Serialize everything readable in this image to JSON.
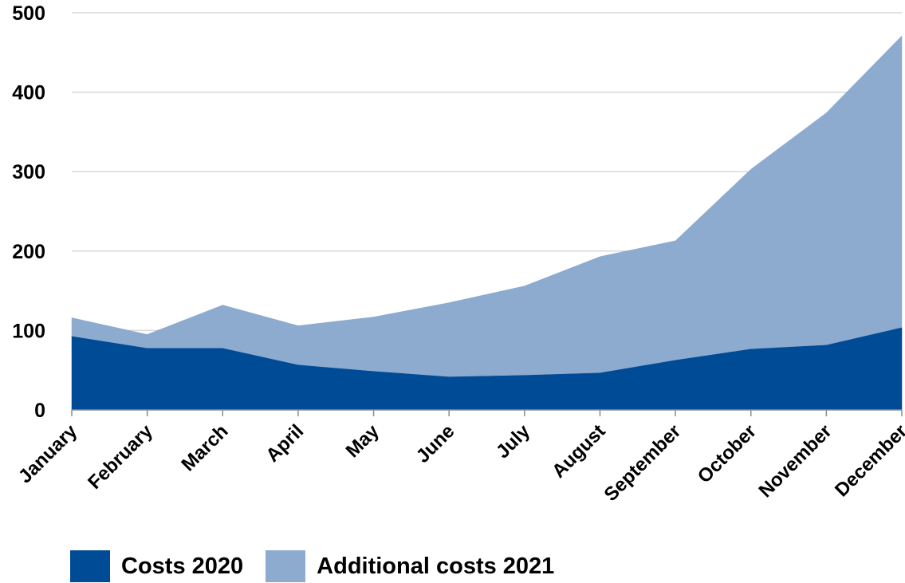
{
  "chart_data": {
    "type": "area",
    "stacked": true,
    "categories": [
      "January",
      "February",
      "March",
      "April",
      "May",
      "June",
      "July",
      "August",
      "September",
      "October",
      "November",
      "December"
    ],
    "series": [
      {
        "name": "Costs 2020",
        "color": "#004B96",
        "values": [
          93,
          78,
          78,
          57,
          49,
          42,
          44,
          47,
          63,
          77,
          82,
          104
        ]
      },
      {
        "name": "Additional costs 2021",
        "color": "#8DAACF",
        "values": [
          23,
          17,
          54,
          49,
          68,
          93,
          112,
          146,
          150,
          226,
          292,
          367
        ]
      }
    ],
    "ylim": [
      0,
      500
    ],
    "yticks": [
      0,
      100,
      200,
      300,
      400,
      500
    ],
    "grid": true,
    "gridlines_color": "#D9D9D9",
    "legend_position": "bottom-left",
    "title": "",
    "xlabel": "",
    "ylabel": ""
  }
}
